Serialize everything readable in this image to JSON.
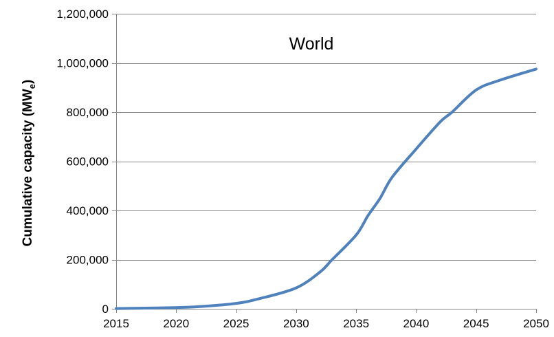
{
  "chart_data": {
    "type": "line",
    "title": "",
    "annotation": "World",
    "xlabel": "",
    "ylabel": "Cumulative capacity (MW",
    "ylabel_subscript": "e",
    "ylabel_suffix": ")",
    "xlim": [
      2015,
      2050
    ],
    "ylim": [
      0,
      1200000
    ],
    "x_ticks": [
      2015,
      2020,
      2025,
      2030,
      2035,
      2040,
      2045,
      2050
    ],
    "x_tick_labels": [
      "2015",
      "2020",
      "2025",
      "2030",
      "2035",
      "2040",
      "2045",
      "2050"
    ],
    "y_ticks": [
      0,
      200000,
      400000,
      600000,
      800000,
      1000000,
      1200000
    ],
    "y_tick_labels": [
      "0",
      "200,000",
      "400,000",
      "600,000",
      "800,000",
      "1,000,000",
      "1,200,000"
    ],
    "grid": "horizontal",
    "legend": "none",
    "series": [
      {
        "color": "#4f81bd",
        "x": [
          2015,
          2017,
          2020,
          2022,
          2025,
          2027,
          2030,
          2032,
          2033,
          2035,
          2036,
          2037,
          2038,
          2040,
          2042,
          2043,
          2045,
          2047,
          2050
        ],
        "y": [
          1000,
          2500,
          5000,
          9000,
          22000,
          42000,
          85000,
          150000,
          200000,
          300000,
          380000,
          450000,
          535000,
          650000,
          760000,
          800000,
          890000,
          930000,
          975000
        ]
      }
    ]
  }
}
